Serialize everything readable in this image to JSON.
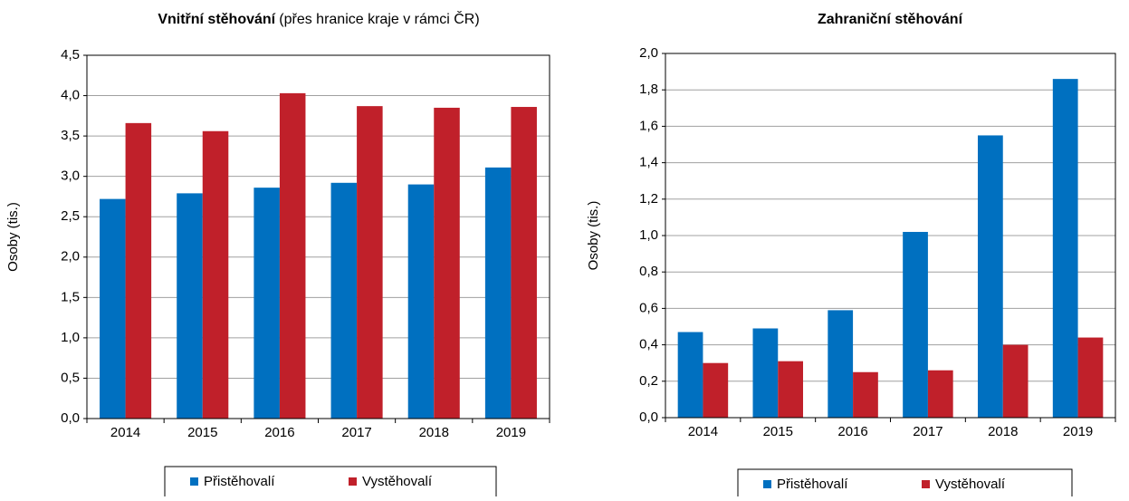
{
  "chart_data": [
    {
      "type": "bar",
      "title": "Vnitřní stěhování",
      "title_note": "(přes hranice kraje v rámci ČR)",
      "ylabel": "Osoby (tis.)",
      "categories": [
        "2014",
        "2015",
        "2016",
        "2017",
        "2018",
        "2019"
      ],
      "series": [
        {
          "name": "Přistěhovalí",
          "color": "#0070c0",
          "values": [
            2.72,
            2.79,
            2.86,
            2.92,
            2.9,
            3.11
          ]
        },
        {
          "name": "Vystěhovalí",
          "color": "#c0202a",
          "values": [
            3.66,
            3.56,
            4.03,
            3.87,
            3.85,
            3.86
          ]
        }
      ],
      "ylim": [
        0,
        4.5
      ],
      "yticks": [
        {
          "value": 0,
          "label": "0,0"
        },
        {
          "value": 0.5,
          "label": "0,5"
        },
        {
          "value": 1,
          "label": "1,0"
        },
        {
          "value": 1.5,
          "label": "1,5"
        },
        {
          "value": 2,
          "label": "2,0"
        },
        {
          "value": 2.5,
          "label": "2,5"
        },
        {
          "value": 3,
          "label": "3,0"
        },
        {
          "value": 3.5,
          "label": "3,5"
        },
        {
          "value": 4,
          "label": "4,0"
        },
        {
          "value": 4.5,
          "label": "4,5"
        }
      ],
      "grid": true,
      "legend": "bottom"
    },
    {
      "type": "bar",
      "title": "Zahraniční stěhování",
      "ylabel": "Osoby (tis.)",
      "categories": [
        "2014",
        "2015",
        "2016",
        "2017",
        "2018",
        "2019"
      ],
      "series": [
        {
          "name": "Přistěhovalí",
          "color": "#0070c0",
          "values": [
            0.47,
            0.49,
            0.59,
            1.02,
            1.55,
            1.86
          ]
        },
        {
          "name": "Vystěhovalí",
          "color": "#c0202a",
          "values": [
            0.3,
            0.31,
            0.25,
            0.26,
            0.4,
            0.44
          ]
        }
      ],
      "ylim": [
        0,
        2
      ],
      "yticks": [
        {
          "value": 0,
          "label": "0,0"
        },
        {
          "value": 0.2,
          "label": "0,2"
        },
        {
          "value": 0.4,
          "label": "0,4"
        },
        {
          "value": 0.6,
          "label": "0,6"
        },
        {
          "value": 0.8,
          "label": "0,8"
        },
        {
          "value": 1,
          "label": "1,0"
        },
        {
          "value": 1.2,
          "label": "1,2"
        },
        {
          "value": 1.4,
          "label": "1,4"
        },
        {
          "value": 1.6,
          "label": "1,6"
        },
        {
          "value": 1.8,
          "label": "1,8"
        },
        {
          "value": 2,
          "label": "2,0"
        }
      ],
      "grid": true,
      "legend": "bottom"
    }
  ]
}
